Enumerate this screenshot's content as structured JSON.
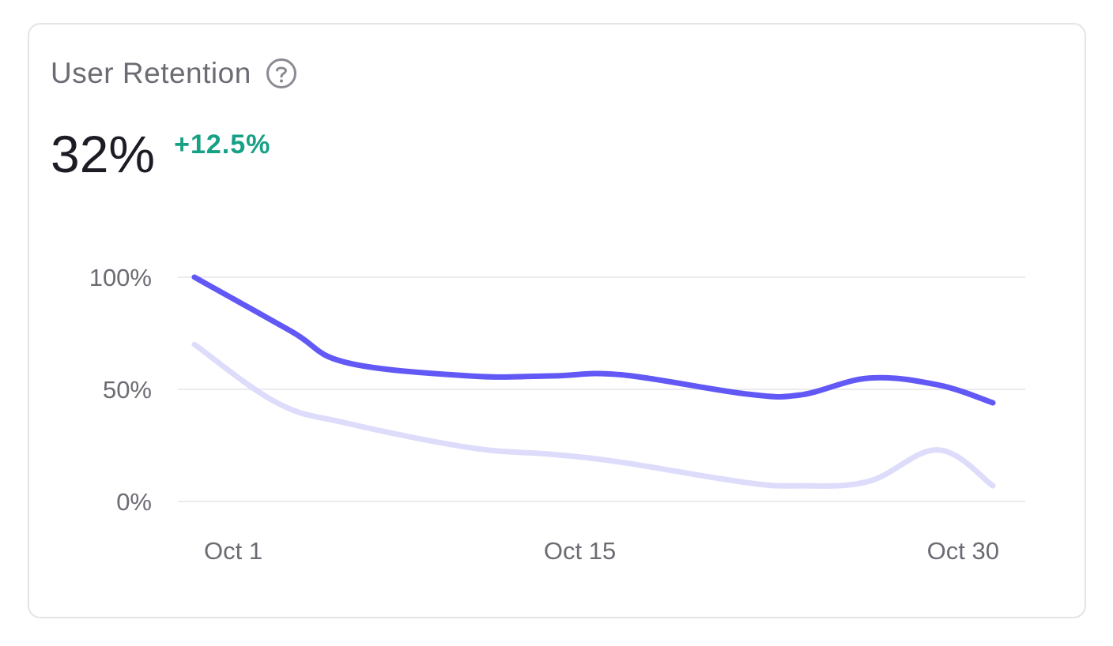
{
  "card": {
    "title": "User Retention",
    "help_icon": "question-circle-icon",
    "metric_value": "32%",
    "metric_change": "+12.5%"
  },
  "colors": {
    "primary_series": "#6158f5",
    "secondary_series": "#dddcfb",
    "positive": "#16a085",
    "grid": "#ebebef",
    "muted_text": "#6b6b73"
  },
  "chart_data": {
    "type": "line",
    "title": "",
    "xlabel": "",
    "ylabel": "",
    "ylim": [
      0,
      100
    ],
    "xlim": [
      1,
      30
    ],
    "y_ticks": [
      {
        "value": 0,
        "label": "0%"
      },
      {
        "value": 50,
        "label": "50%"
      },
      {
        "value": 100,
        "label": "100%"
      }
    ],
    "x_ticks": [
      {
        "value": 1,
        "label": "Oct 1"
      },
      {
        "value": 15,
        "label": "Oct 15"
      },
      {
        "value": 30,
        "label": "Oct 30"
      }
    ],
    "grid": true,
    "legend": "none",
    "series": [
      {
        "color": "#6158f5",
        "x": [
          1,
          4.5,
          6.5,
          11,
          14,
          16.5,
          21,
          23,
          25.5,
          28,
          30
        ],
        "y": [
          100,
          76,
          62,
          56,
          56,
          56.5,
          48,
          47.5,
          55,
          52,
          44
        ]
      },
      {
        "color": "#dddcfb",
        "x": [
          1,
          4,
          6.5,
          11,
          14,
          16.5,
          21,
          23,
          25.5,
          28,
          30
        ],
        "y": [
          70,
          44,
          35,
          24,
          21,
          17.5,
          8.5,
          7,
          9,
          23,
          7
        ]
      }
    ]
  }
}
